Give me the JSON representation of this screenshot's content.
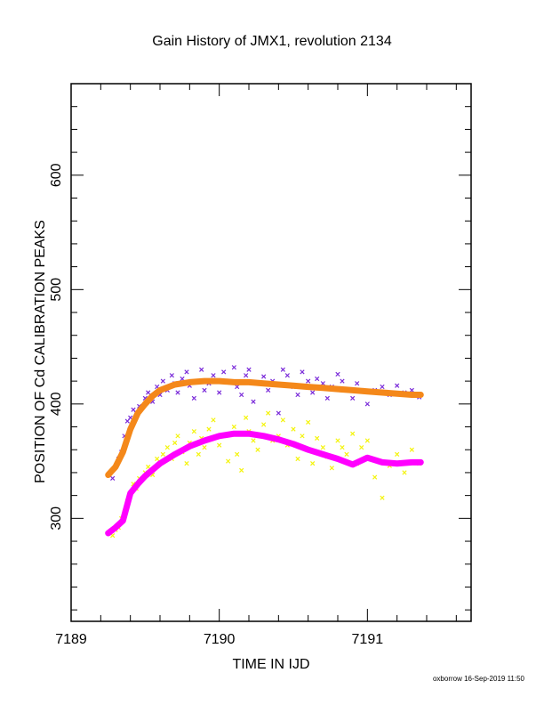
{
  "chart_data": {
    "type": "scatter",
    "title": "Gain History of JMX1, revolution 2134",
    "xlabel": "TIME IN IJD",
    "ylabel": "POSITION OF Cd CALIBRATION PEAKS",
    "xlim": [
      7189.0,
      7191.7
    ],
    "ylim": [
      210,
      680
    ],
    "x_ticks": [
      7189,
      7190,
      7191
    ],
    "y_ticks": [
      300,
      400,
      500,
      600
    ],
    "grid": false,
    "series": [
      {
        "kind": "points",
        "color": "#7a2bd9",
        "marker": "x",
        "x": [
          7189.28,
          7189.3,
          7189.32,
          7189.34,
          7189.36,
          7189.38,
          7189.4,
          7189.42,
          7189.44,
          7189.46,
          7189.5,
          7189.52,
          7189.55,
          7189.58,
          7189.6,
          7189.62,
          7189.65,
          7189.68,
          7189.7,
          7189.72,
          7189.75,
          7189.78,
          7189.8,
          7189.83,
          7189.86,
          7189.88,
          7189.9,
          7189.93,
          7189.96,
          7190.0,
          7190.03,
          7190.06,
          7190.1,
          7190.12,
          7190.15,
          7190.18,
          7190.2,
          7190.23,
          7190.26,
          7190.3,
          7190.33,
          7190.36,
          7190.4,
          7190.43,
          7190.46,
          7190.5,
          7190.53,
          7190.56,
          7190.6,
          7190.63,
          7190.66,
          7190.7,
          7190.73,
          7190.76,
          7190.8,
          7190.83,
          7190.86,
          7190.9,
          7190.93,
          7190.96,
          7191.0,
          7191.05,
          7191.1,
          7191.15,
          7191.2,
          7191.25,
          7191.3,
          7191.35
        ],
        "y": [
          335,
          345,
          352,
          358,
          372,
          385,
          388,
          395,
          392,
          398,
          405,
          410,
          402,
          415,
          408,
          420,
          412,
          425,
          418,
          410,
          422,
          428,
          416,
          405,
          420,
          430,
          412,
          418,
          425,
          410,
          428,
          420,
          432,
          415,
          408,
          425,
          430,
          402,
          418,
          424,
          412,
          420,
          392,
          430,
          425,
          415,
          408,
          428,
          420,
          410,
          422,
          418,
          405,
          415,
          426,
          420,
          412,
          405,
          418,
          412,
          400,
          412,
          415,
          408,
          416,
          410,
          412,
          406
        ]
      },
      {
        "kind": "points",
        "color": "#f4f40a",
        "marker": "x",
        "x": [
          7189.28,
          7189.3,
          7189.32,
          7189.34,
          7189.36,
          7189.38,
          7189.4,
          7189.42,
          7189.44,
          7189.46,
          7189.5,
          7189.52,
          7189.55,
          7189.58,
          7189.6,
          7189.62,
          7189.65,
          7189.68,
          7189.7,
          7189.72,
          7189.75,
          7189.78,
          7189.8,
          7189.83,
          7189.86,
          7189.88,
          7189.9,
          7189.93,
          7189.96,
          7190.0,
          7190.03,
          7190.06,
          7190.1,
          7190.12,
          7190.15,
          7190.18,
          7190.2,
          7190.23,
          7190.26,
          7190.3,
          7190.33,
          7190.36,
          7190.4,
          7190.43,
          7190.46,
          7190.5,
          7190.53,
          7190.56,
          7190.6,
          7190.63,
          7190.66,
          7190.7,
          7190.73,
          7190.76,
          7190.8,
          7190.83,
          7190.86,
          7190.9,
          7190.93,
          7190.96,
          7191.0,
          7191.05,
          7191.1,
          7191.15,
          7191.2,
          7191.25,
          7191.3,
          7191.35
        ],
        "y": [
          285,
          290,
          292,
          300,
          305,
          315,
          322,
          330,
          326,
          335,
          340,
          345,
          338,
          352,
          348,
          356,
          362,
          352,
          366,
          372,
          358,
          348,
          366,
          376,
          356,
          370,
          362,
          378,
          386,
          364,
          372,
          350,
          380,
          356,
          342,
          388,
          376,
          368,
          360,
          382,
          392,
          368,
          372,
          386,
          364,
          378,
          352,
          372,
          384,
          348,
          370,
          362,
          354,
          344,
          368,
          362,
          356,
          374,
          348,
          362,
          368,
          336,
          318,
          346,
          356,
          340,
          360,
          348
        ]
      },
      {
        "kind": "fit",
        "color": "#f4881a",
        "x": [
          7189.25,
          7189.3,
          7189.35,
          7189.4,
          7189.45,
          7189.5,
          7189.55,
          7189.6,
          7189.7,
          7189.8,
          7189.9,
          7190.0,
          7190.1,
          7190.2,
          7190.3,
          7190.4,
          7190.5,
          7190.6,
          7190.7,
          7190.8,
          7190.9,
          7191.0,
          7191.1,
          7191.2,
          7191.3,
          7191.36
        ],
        "y": [
          338,
          345,
          358,
          378,
          392,
          400,
          407,
          412,
          417,
          419,
          420,
          420,
          419,
          419,
          418,
          417,
          416,
          415,
          414,
          413,
          412,
          411,
          410,
          409,
          408,
          408
        ]
      },
      {
        "kind": "fit",
        "color": "#ff00ff",
        "x": [
          7189.25,
          7189.3,
          7189.35,
          7189.4,
          7189.45,
          7189.5,
          7189.6,
          7189.7,
          7189.8,
          7189.9,
          7190.0,
          7190.1,
          7190.2,
          7190.3,
          7190.4,
          7190.5,
          7190.6,
          7190.7,
          7190.8,
          7190.9,
          7191.0,
          7191.1,
          7191.2,
          7191.3,
          7191.36
        ],
        "y": [
          287,
          292,
          298,
          322,
          330,
          337,
          348,
          356,
          363,
          368,
          372,
          374,
          374,
          372,
          369,
          365,
          360,
          356,
          352,
          347,
          353,
          349,
          348,
          349,
          349
        ]
      }
    ]
  },
  "footer": {
    "stamp": "oxborrow 16-Sep-2019 11:50"
  }
}
